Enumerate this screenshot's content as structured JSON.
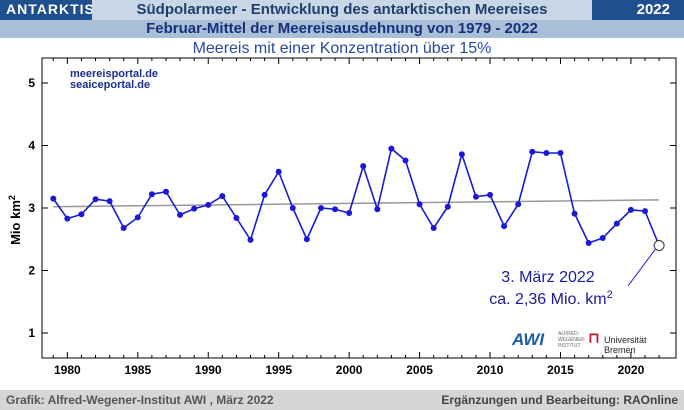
{
  "header": {
    "region": "ANTARKTIS",
    "title": "Südpolarmeer - Entwicklung des antarktischen  Meereises",
    "year": "2022",
    "subtitle": "Februar-Mittel der Meereisausdehnung von 1979 - 2022"
  },
  "chart_data": {
    "type": "line",
    "title": "Meereis mit einer Konzentration über 15%",
    "xlabel": "",
    "ylabel": "Mio km²",
    "xlim": [
      1978.2,
      2023.2
    ],
    "ylim": [
      0.6,
      5.4
    ],
    "x_ticks": [
      1980,
      1985,
      1990,
      1995,
      2000,
      2005,
      2010,
      2015,
      2020
    ],
    "y_ticks": [
      1,
      2,
      3,
      4,
      5
    ],
    "series": [
      {
        "name": "Februar-Mittel",
        "x": [
          1979,
          1980,
          1981,
          1982,
          1983,
          1984,
          1985,
          1986,
          1987,
          1988,
          1989,
          1990,
          1991,
          1992,
          1993,
          1994,
          1995,
          1996,
          1997,
          1998,
          1999,
          2000,
          2001,
          2002,
          2003,
          2004,
          2005,
          2006,
          2007,
          2008,
          2009,
          2010,
          2011,
          2012,
          2013,
          2014,
          2015,
          2016,
          2017,
          2018,
          2019,
          2020,
          2021,
          2022
        ],
        "values": [
          3.15,
          2.83,
          2.9,
          3.14,
          3.11,
          2.68,
          2.85,
          3.22,
          3.26,
          2.89,
          2.99,
          3.05,
          3.19,
          2.84,
          2.49,
          3.21,
          3.58,
          3.0,
          2.5,
          3.0,
          2.98,
          2.92,
          3.67,
          2.98,
          3.95,
          3.76,
          3.06,
          2.68,
          3.02,
          3.86,
          3.18,
          3.21,
          2.71,
          3.06,
          3.9,
          3.88,
          3.88,
          2.91,
          2.44,
          2.52,
          2.75,
          2.97,
          2.95,
          2.4
        ]
      },
      {
        "name": "Trend",
        "x": [
          1979,
          2022
        ],
        "values": [
          3.02,
          3.13
        ]
      }
    ],
    "annotation": {
      "line1": "3. März 2022",
      "line2": "ca. 2,36 Mio. km",
      "sup": "2",
      "x": 2022,
      "y": 2.4
    }
  },
  "sources": {
    "url1": "meereisportal.de",
    "url2": "seaiceportal.de"
  },
  "logos": {
    "awi": "AWI",
    "awi_sub": "ALFRED-WEGENER-INSTITUT",
    "uni": "Universität Bremen"
  },
  "footer": {
    "left": "Grafik: Alfred-Wegener-Institut AWI , März 2022",
    "right": "Ergänzungen und Bearbeitung: RAOnline"
  },
  "colors": {
    "line": "#1a1ad6",
    "trend": "#999999",
    "frame": "#000000"
  }
}
